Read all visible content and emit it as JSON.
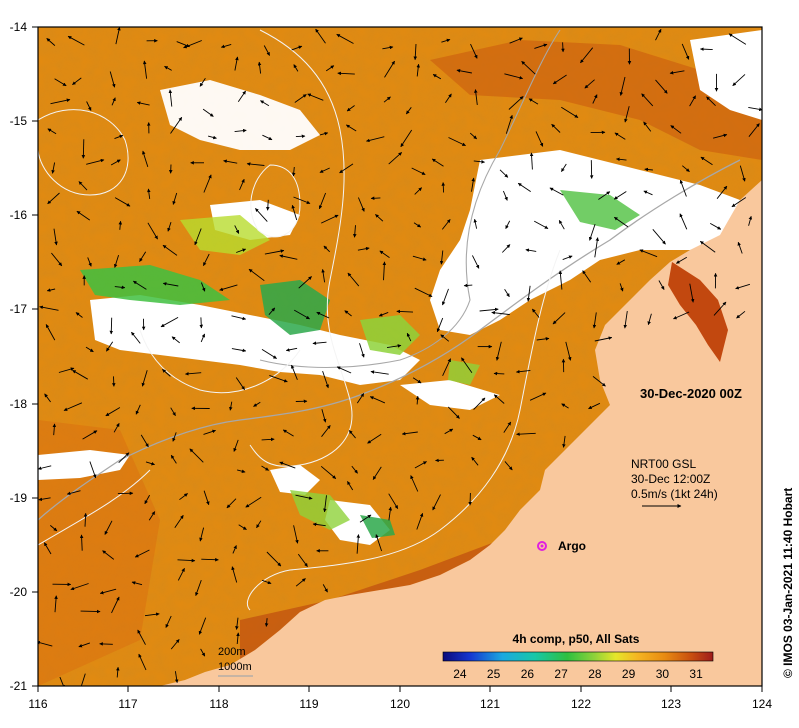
{
  "map": {
    "date_label": "30-Dec-2020 00Z",
    "current_legend": {
      "line1": "NRT00 GSL",
      "line2": "30-Dec 12:00Z",
      "line3": "0.5m/s (1kt 24h)"
    },
    "argo_label": "Argo",
    "credit": "© IMOS 03-Jan-2021 11:40 Hobart",
    "isobaths": {
      "line1": "200m",
      "line2": "1000m"
    },
    "colorbar": {
      "title": "4h comp, p50, All Sats",
      "ticks": [
        "24",
        "25",
        "26",
        "27",
        "28",
        "29",
        "30",
        "31"
      ],
      "range": [
        23.5,
        31.5
      ]
    },
    "lon_ticks": [
      "116",
      "117",
      "118",
      "119",
      "120",
      "121",
      "122",
      "123",
      "124"
    ],
    "lat_ticks": [
      "-14",
      "-15",
      "-16",
      "-17",
      "-18",
      "-19",
      "-20",
      "-21"
    ],
    "colors": {
      "land": "#f9c89d",
      "cloud": "#ffffff",
      "sst_warm": "#e38a10",
      "sst_hot": "#b23a0e",
      "sst_cool": "#3fbf3f",
      "isobath": "#a8a8a8",
      "argo": "#e020e0"
    }
  }
}
